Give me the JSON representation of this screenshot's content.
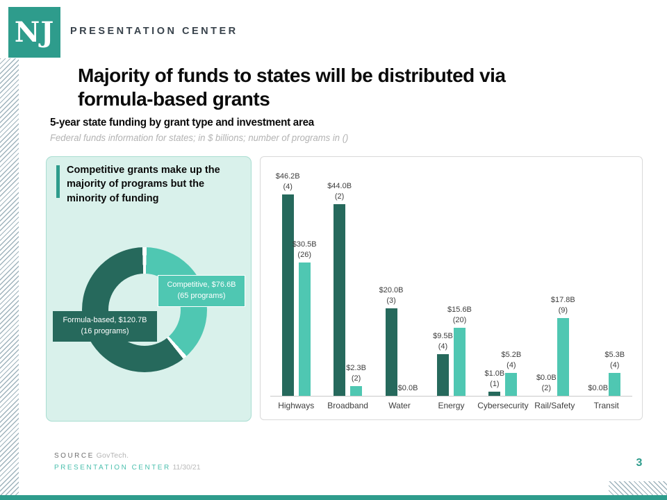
{
  "brand": {
    "logo_text": "NJ",
    "name": "PRESENTATION CENTER"
  },
  "title": {
    "line1": "Majority of funds to states will be distributed via",
    "line2": "formula-based grants"
  },
  "subtitle": "5-year state funding by grant type and investment area",
  "note": "Federal funds information for states; in $ billions; number of programs in ()",
  "callout": {
    "text": "Competitive grants make up the majority of programs but the minority of funding"
  },
  "colors": {
    "accent_teal": "#2E9C8C",
    "formula_dark": "#26695C",
    "competitive_light": "#4FC7B2",
    "panel_mint": "#D9F1EB",
    "footer_teal": "#4CC0AE"
  },
  "chart_data": [
    {
      "type": "pie",
      "donut": true,
      "title": "",
      "legend_position": "data-labels",
      "start_angle_deg": 0,
      "slices": [
        {
          "label": "Competitive",
          "value_billions": 76.6,
          "programs": 65,
          "display": "Competitive, $76.6B\n(65 programs)",
          "color": "#4FC7B2"
        },
        {
          "label": "Formula-based",
          "value_billions": 120.7,
          "programs": 16,
          "display": "Formula-based, $120.7B\n(16 programs)",
          "color": "#26695C"
        }
      ]
    },
    {
      "type": "bar",
      "title": "5-year state funding by grant type and investment area",
      "xlabel": "",
      "ylabel": "$ billions",
      "ylim": [
        0,
        50
      ],
      "grid": false,
      "categories": [
        "Highways",
        "Broadband",
        "Water",
        "Energy",
        "Cybersecurity",
        "Rail/Safety",
        "Transit"
      ],
      "series": [
        {
          "name": "Formula-based",
          "color": "#26695C",
          "values": [
            46.2,
            44.0,
            20.0,
            9.5,
            1.0,
            0.0,
            0.0
          ],
          "labels": [
            "$46.2B\n(4)",
            "$44.0B\n(2)",
            "$20.0B\n(3)",
            "$9.5B\n(4)",
            "$1.0B\n(1)",
            "$0.0B\n(2)",
            "$0.0B"
          ]
        },
        {
          "name": "Competitive",
          "color": "#4FC7B2",
          "values": [
            30.5,
            2.3,
            0.0,
            15.6,
            5.2,
            17.8,
            5.3
          ],
          "labels": [
            "$30.5B\n(26)",
            "$2.3B\n(2)",
            "$0.0B",
            "$15.6B\n(20)",
            "$5.2B\n(4)",
            "$17.8B\n(9)",
            "$5.3B\n(4)"
          ]
        }
      ]
    }
  ],
  "footer": {
    "source_label": "SOURCE",
    "source_value": "GovTech.",
    "brand": "PRESENTATION CENTER",
    "date": "11/30/21",
    "page_number": "3"
  }
}
